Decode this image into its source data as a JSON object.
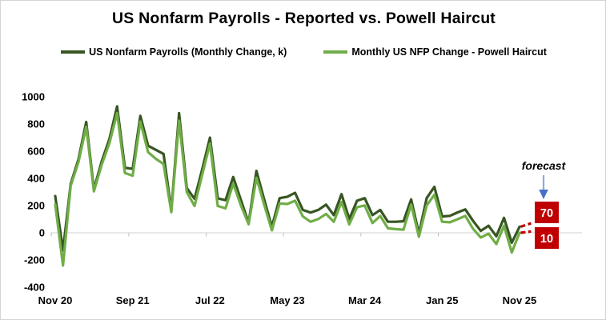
{
  "chart_data": {
    "type": "line",
    "title": "US Nonfarm Payrolls - Reported vs. Powell Haircut",
    "legend_position": "top",
    "grid": false,
    "axis_color": "#d9d9d9",
    "ylim": [
      -400,
      1000
    ],
    "y_ticks": [
      1000,
      800,
      600,
      400,
      200,
      0,
      -200,
      -400
    ],
    "x_tick_labels": [
      "Nov 20",
      "Sep 21",
      "Jul 22",
      "May 23",
      "Mar 24",
      "Jan 25",
      "Nov 25"
    ],
    "months": [
      "Nov-20",
      "Dec-20",
      "Jan-21",
      "Feb-21",
      "Mar-21",
      "Apr-21",
      "May-21",
      "Jun-21",
      "Jul-21",
      "Aug-21",
      "Sep-21",
      "Oct-21",
      "Nov-21",
      "Dec-21",
      "Jan-22",
      "Feb-22",
      "Mar-22",
      "Apr-22",
      "May-22",
      "Jun-22",
      "Jul-22",
      "Aug-22",
      "Sep-22",
      "Oct-22",
      "Nov-22",
      "Dec-22",
      "Jan-23",
      "Feb-23",
      "Mar-23",
      "Apr-23",
      "May-23",
      "Jun-23",
      "Jul-23",
      "Aug-23",
      "Sep-23",
      "Oct-23",
      "Nov-23",
      "Dec-23",
      "Jan-24",
      "Feb-24",
      "Mar-24",
      "Apr-24",
      "May-24",
      "Jun-24",
      "Jul-24",
      "Aug-24",
      "Sep-24",
      "Oct-24",
      "Nov-24",
      "Dec-24",
      "Jan-25",
      "Feb-25",
      "Mar-25",
      "Apr-25",
      "May-25",
      "Jun-25",
      "Jul-25",
      "Aug-25",
      "Sep-25",
      "Oct-25",
      "Nov-25"
    ],
    "series": [
      {
        "name": "US Nonfarm Payrolls (Monthly Change, k)",
        "color": "#375623",
        "values": [
          270,
          -130,
          360,
          540,
          815,
          320,
          525,
          690,
          930,
          478,
          470,
          860,
          640,
          610,
          580,
          165,
          880,
          330,
          250,
          470,
          700,
          253,
          240,
          410,
          240,
          73,
          455,
          245,
          45,
          255,
          265,
          294,
          168,
          149,
          168,
          207,
          130,
          284,
          101,
          236,
          255,
          130,
          168,
          81,
          81,
          85,
          245,
          -6,
          255,
          338,
          120,
          125,
          150,
          172,
          87,
          14,
          52,
          -25,
          110,
          -73,
          45
        ]
      },
      {
        "name": "Monthly US NFP Change - Powell Haircut",
        "color": "#70ad47",
        "values": [
          210,
          -240,
          345,
          520,
          780,
          305,
          500,
          660,
          880,
          440,
          420,
          818,
          593,
          544,
          506,
          152,
          824,
          300,
          197,
          430,
          655,
          197,
          180,
          362,
          200,
          63,
          405,
          207,
          18,
          216,
          212,
          236,
          120,
          81,
          101,
          139,
          81,
          226,
          62,
          188,
          201,
          72,
          124,
          33,
          27,
          23,
          207,
          -29,
          201,
          280,
          81,
          77,
          100,
          124,
          29,
          -35,
          -6,
          -83,
          52,
          -145,
          0
        ]
      }
    ],
    "forecast": {
      "label": "forecast",
      "reported": 70,
      "haircut": 10,
      "dash_color": "#c00000",
      "box_color": "#c00000",
      "annotation_color": "#4472c4"
    }
  }
}
